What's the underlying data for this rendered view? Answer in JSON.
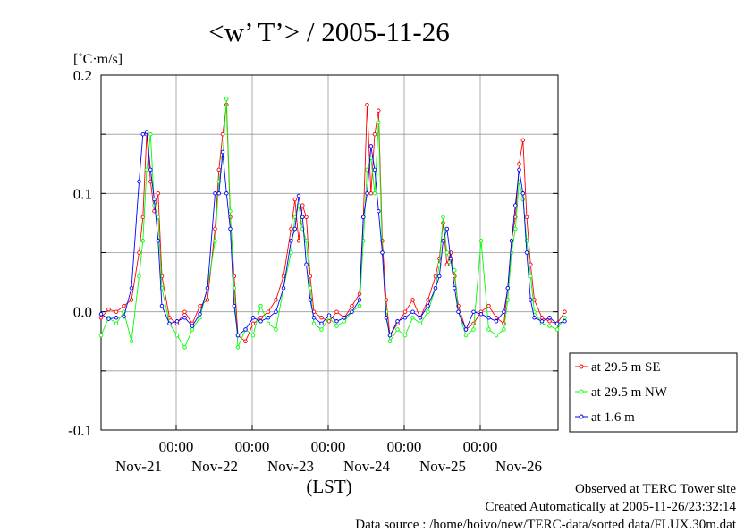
{
  "chart_data": {
    "type": "line",
    "title": "<w’ T’> / 2005-11-26",
    "ylabel": "[˚C·m/s]",
    "xlabel": "(LST)",
    "ylim": [
      -0.1,
      0.2
    ],
    "y_ticks": [
      "0.2",
      "0.1",
      "0.0",
      "-0.1"
    ],
    "x_time_labels": [
      "00:00",
      "00:00",
      "00:00",
      "00:00",
      "00:00"
    ],
    "x_date_labels": [
      "Nov-21",
      "Nov-22",
      "Nov-23",
      "Nov-24",
      "Nov-25",
      "Nov-26"
    ],
    "grid": true,
    "legend_position": "right",
    "series": [
      {
        "name": "at 29.5 m SE",
        "color": "#ff0000",
        "points": [
          [
            0.0,
            -0.005
          ],
          [
            0.1,
            0.002
          ],
          [
            0.2,
            0.0
          ],
          [
            0.3,
            0.005
          ],
          [
            0.4,
            0.01
          ],
          [
            0.5,
            0.05
          ],
          [
            0.55,
            0.08
          ],
          [
            0.6,
            0.15
          ],
          [
            0.65,
            0.11
          ],
          [
            0.7,
            0.085
          ],
          [
            0.75,
            0.1
          ],
          [
            0.8,
            0.03
          ],
          [
            0.9,
            -0.005
          ],
          [
            1.0,
            -0.01
          ],
          [
            1.1,
            0.0
          ],
          [
            1.2,
            -0.01
          ],
          [
            1.3,
            0.005
          ],
          [
            1.4,
            0.01
          ],
          [
            1.5,
            0.07
          ],
          [
            1.55,
            0.12
          ],
          [
            1.6,
            0.15
          ],
          [
            1.65,
            0.175
          ],
          [
            1.7,
            0.08
          ],
          [
            1.75,
            0.03
          ],
          [
            1.8,
            -0.02
          ],
          [
            1.9,
            -0.025
          ],
          [
            2.0,
            -0.01
          ],
          [
            2.1,
            -0.005
          ],
          [
            2.2,
            0.0
          ],
          [
            2.3,
            0.01
          ],
          [
            2.4,
            0.03
          ],
          [
            2.5,
            0.07
          ],
          [
            2.55,
            0.095
          ],
          [
            2.6,
            0.06
          ],
          [
            2.65,
            0.09
          ],
          [
            2.7,
            0.08
          ],
          [
            2.75,
            0.03
          ],
          [
            2.8,
            0.0
          ],
          [
            2.9,
            -0.005
          ],
          [
            3.0,
            -0.008
          ],
          [
            3.1,
            0.0
          ],
          [
            3.2,
            -0.005
          ],
          [
            3.3,
            0.005
          ],
          [
            3.4,
            0.015
          ],
          [
            3.45,
            0.08
          ],
          [
            3.5,
            0.175
          ],
          [
            3.55,
            0.1
          ],
          [
            3.6,
            0.15
          ],
          [
            3.65,
            0.17
          ],
          [
            3.7,
            0.06
          ],
          [
            3.75,
            0.01
          ],
          [
            3.8,
            -0.02
          ],
          [
            3.9,
            -0.01
          ],
          [
            4.0,
            0.0
          ],
          [
            4.1,
            0.01
          ],
          [
            4.2,
            -0.005
          ],
          [
            4.3,
            0.01
          ],
          [
            4.4,
            0.03
          ],
          [
            4.45,
            0.045
          ],
          [
            4.5,
            0.075
          ],
          [
            4.55,
            0.04
          ],
          [
            4.6,
            0.05
          ],
          [
            4.65,
            0.03
          ],
          [
            4.7,
            0.005
          ],
          [
            4.8,
            -0.015
          ],
          [
            4.9,
            -0.01
          ],
          [
            5.0,
            0.0
          ],
          [
            5.1,
            0.005
          ],
          [
            5.2,
            -0.005
          ],
          [
            5.3,
            -0.01
          ],
          [
            5.35,
            0.02
          ],
          [
            5.4,
            0.06
          ],
          [
            5.45,
            0.08
          ],
          [
            5.5,
            0.125
          ],
          [
            5.55,
            0.145
          ],
          [
            5.6,
            0.08
          ],
          [
            5.65,
            0.04
          ],
          [
            5.7,
            0.01
          ],
          [
            5.8,
            -0.005
          ],
          [
            5.9,
            -0.008
          ],
          [
            6.0,
            -0.01
          ],
          [
            6.1,
            0.0
          ]
        ]
      },
      {
        "name": "at 29.5 m NW",
        "color": "#00ff00",
        "points": [
          [
            0.0,
            -0.02
          ],
          [
            0.1,
            -0.005
          ],
          [
            0.2,
            -0.01
          ],
          [
            0.3,
            0.0
          ],
          [
            0.4,
            -0.025
          ],
          [
            0.5,
            0.03
          ],
          [
            0.55,
            0.06
          ],
          [
            0.6,
            0.12
          ],
          [
            0.65,
            0.15
          ],
          [
            0.7,
            0.09
          ],
          [
            0.75,
            0.08
          ],
          [
            0.8,
            0.02
          ],
          [
            0.9,
            -0.01
          ],
          [
            1.0,
            -0.02
          ],
          [
            1.1,
            -0.03
          ],
          [
            1.2,
            -0.015
          ],
          [
            1.3,
            -0.005
          ],
          [
            1.4,
            0.02
          ],
          [
            1.5,
            0.06
          ],
          [
            1.55,
            0.11
          ],
          [
            1.6,
            0.13
          ],
          [
            1.65,
            0.18
          ],
          [
            1.7,
            0.085
          ],
          [
            1.75,
            0.02
          ],
          [
            1.8,
            -0.03
          ],
          [
            1.9,
            -0.015
          ],
          [
            2.0,
            -0.02
          ],
          [
            2.1,
            0.005
          ],
          [
            2.2,
            -0.01
          ],
          [
            2.3,
            -0.015
          ],
          [
            2.4,
            0.02
          ],
          [
            2.5,
            0.05
          ],
          [
            2.55,
            0.08
          ],
          [
            2.6,
            0.09
          ],
          [
            2.65,
            0.07
          ],
          [
            2.7,
            0.06
          ],
          [
            2.75,
            0.02
          ],
          [
            2.8,
            -0.01
          ],
          [
            2.9,
            -0.015
          ],
          [
            3.0,
            -0.005
          ],
          [
            3.1,
            -0.012
          ],
          [
            3.2,
            -0.008
          ],
          [
            3.3,
            0.0
          ],
          [
            3.4,
            0.005
          ],
          [
            3.45,
            0.06
          ],
          [
            3.5,
            0.12
          ],
          [
            3.55,
            0.13
          ],
          [
            3.6,
            0.1
          ],
          [
            3.65,
            0.16
          ],
          [
            3.7,
            0.05
          ],
          [
            3.75,
            0.0
          ],
          [
            3.8,
            -0.025
          ],
          [
            3.9,
            -0.015
          ],
          [
            4.0,
            -0.02
          ],
          [
            4.1,
            -0.005
          ],
          [
            4.2,
            -0.01
          ],
          [
            4.3,
            0.0
          ],
          [
            4.4,
            0.02
          ],
          [
            4.45,
            0.04
          ],
          [
            4.5,
            0.08
          ],
          [
            4.55,
            0.05
          ],
          [
            4.6,
            0.04
          ],
          [
            4.65,
            0.035
          ],
          [
            4.7,
            0.0
          ],
          [
            4.8,
            -0.02
          ],
          [
            4.9,
            -0.015
          ],
          [
            5.0,
            0.06
          ],
          [
            5.1,
            -0.015
          ],
          [
            5.2,
            -0.02
          ],
          [
            5.3,
            -0.015
          ],
          [
            5.35,
            0.01
          ],
          [
            5.4,
            0.05
          ],
          [
            5.45,
            0.07
          ],
          [
            5.5,
            0.11
          ],
          [
            5.55,
            0.095
          ],
          [
            5.6,
            0.06
          ],
          [
            5.65,
            0.03
          ],
          [
            5.7,
            0.0
          ],
          [
            5.8,
            -0.01
          ],
          [
            5.9,
            -0.012
          ],
          [
            6.0,
            -0.015
          ],
          [
            6.1,
            -0.005
          ]
        ]
      },
      {
        "name": "at 1.6 m",
        "color": "#0000ff",
        "points": [
          [
            0.0,
            -0.002
          ],
          [
            0.1,
            -0.006
          ],
          [
            0.2,
            -0.005
          ],
          [
            0.3,
            -0.004
          ],
          [
            0.4,
            0.02
          ],
          [
            0.5,
            0.11
          ],
          [
            0.55,
            0.15
          ],
          [
            0.6,
            0.152
          ],
          [
            0.65,
            0.12
          ],
          [
            0.7,
            0.095
          ],
          [
            0.75,
            0.06
          ],
          [
            0.8,
            0.005
          ],
          [
            0.9,
            -0.01
          ],
          [
            1.0,
            -0.008
          ],
          [
            1.1,
            -0.005
          ],
          [
            1.2,
            -0.012
          ],
          [
            1.3,
            -0.002
          ],
          [
            1.4,
            0.02
          ],
          [
            1.5,
            0.1
          ],
          [
            1.55,
            0.1
          ],
          [
            1.6,
            0.135
          ],
          [
            1.65,
            0.1
          ],
          [
            1.7,
            0.07
          ],
          [
            1.75,
            0.005
          ],
          [
            1.8,
            -0.02
          ],
          [
            1.9,
            -0.015
          ],
          [
            2.0,
            -0.005
          ],
          [
            2.1,
            -0.008
          ],
          [
            2.2,
            -0.005
          ],
          [
            2.3,
            0.0
          ],
          [
            2.4,
            0.02
          ],
          [
            2.5,
            0.06
          ],
          [
            2.55,
            0.07
          ],
          [
            2.6,
            0.098
          ],
          [
            2.65,
            0.08
          ],
          [
            2.7,
            0.04
          ],
          [
            2.75,
            0.01
          ],
          [
            2.8,
            -0.005
          ],
          [
            2.9,
            -0.01
          ],
          [
            3.0,
            -0.003
          ],
          [
            3.1,
            -0.008
          ],
          [
            3.2,
            -0.005
          ],
          [
            3.3,
            0.0
          ],
          [
            3.4,
            0.01
          ],
          [
            3.45,
            0.08
          ],
          [
            3.5,
            0.1
          ],
          [
            3.55,
            0.14
          ],
          [
            3.6,
            0.12
          ],
          [
            3.65,
            0.085
          ],
          [
            3.7,
            0.05
          ],
          [
            3.75,
            -0.005
          ],
          [
            3.8,
            -0.02
          ],
          [
            3.9,
            -0.008
          ],
          [
            4.0,
            -0.005
          ],
          [
            4.1,
            0.0
          ],
          [
            4.2,
            -0.005
          ],
          [
            4.3,
            0.005
          ],
          [
            4.4,
            0.02
          ],
          [
            4.45,
            0.03
          ],
          [
            4.5,
            0.06
          ],
          [
            4.55,
            0.07
          ],
          [
            4.6,
            0.045
          ],
          [
            4.65,
            0.02
          ],
          [
            4.7,
            0.0
          ],
          [
            4.8,
            -0.015
          ],
          [
            4.9,
            0.0
          ],
          [
            5.0,
            -0.002
          ],
          [
            5.1,
            -0.005
          ],
          [
            5.2,
            -0.008
          ],
          [
            5.3,
            0.0
          ],
          [
            5.35,
            0.02
          ],
          [
            5.4,
            0.06
          ],
          [
            5.45,
            0.09
          ],
          [
            5.5,
            0.12
          ],
          [
            5.55,
            0.1
          ],
          [
            5.6,
            0.05
          ],
          [
            5.65,
            0.01
          ],
          [
            5.7,
            -0.005
          ],
          [
            5.8,
            -0.008
          ],
          [
            5.9,
            -0.005
          ],
          [
            6.0,
            -0.01
          ],
          [
            6.1,
            -0.008
          ]
        ]
      }
    ]
  },
  "footer": {
    "line1": "Observed at TERC Tower site",
    "line2": "Created Automatically at 2005-11-26/23:32:14",
    "line3": "Data source : /home/hoivo/new/TERC-data/sorted data/FLUX.30m.dat"
  }
}
